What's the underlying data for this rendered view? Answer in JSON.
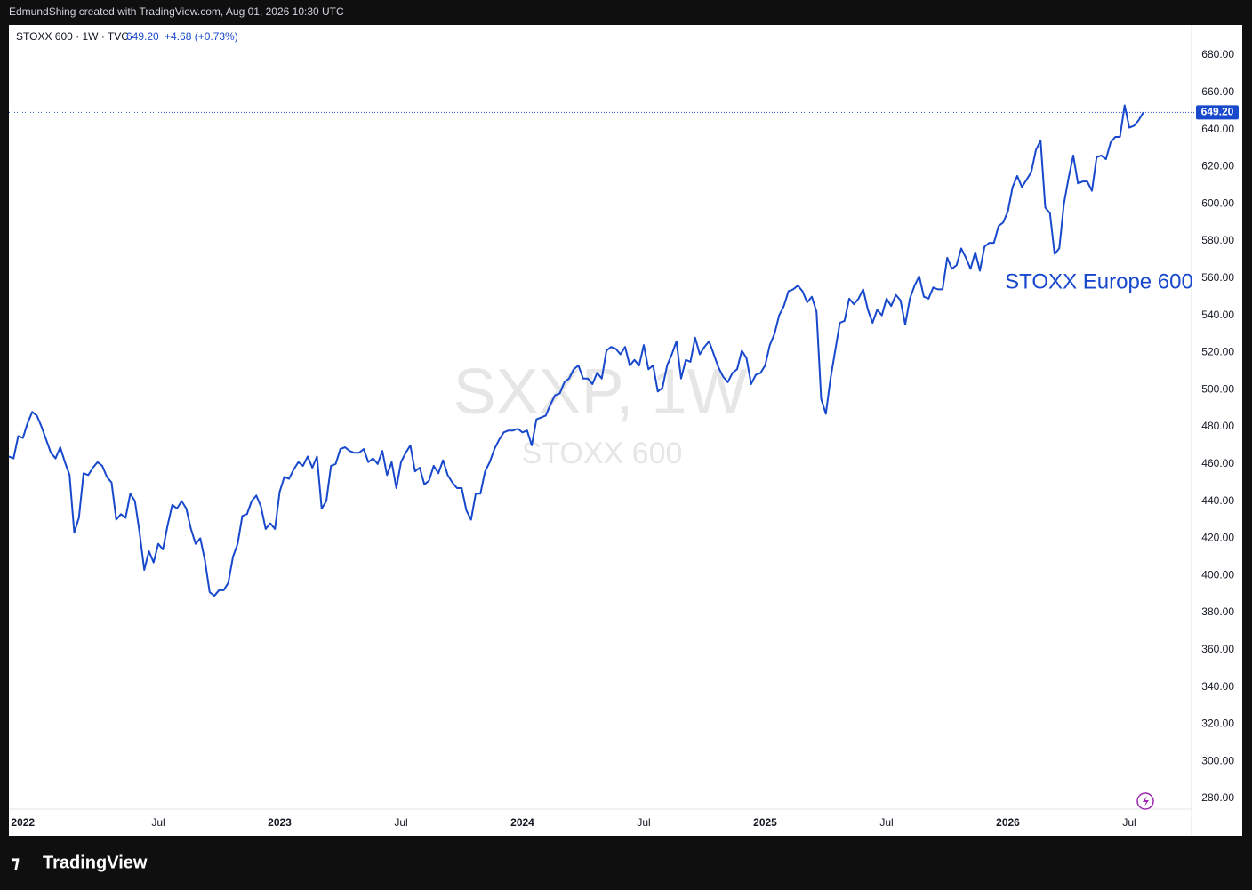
{
  "header": {
    "credit": "EdmundShing created with TradingView.com, Aug 01, 2026 10:30 UTC"
  },
  "chart_data": {
    "type": "line",
    "symbol": "STOXX 600 · 1W · TVC",
    "last": 649.2,
    "last_label": "649.20",
    "change_label": "+4.68 (+0.73%)",
    "watermark": "SXXP, 1W",
    "watermark_sub": "STOXX 600",
    "annotation": "STOXX Europe 600",
    "color": "#1848cc",
    "categories": [
      null,
      null,
      null,
      "2022",
      null,
      null,
      null,
      null,
      null,
      null,
      null,
      null,
      null,
      null,
      null,
      null,
      null,
      null,
      null,
      null,
      null,
      null,
      null,
      null,
      null,
      null,
      null,
      null,
      null,
      null,
      null,
      null,
      "Jul",
      null,
      null,
      null,
      null,
      null,
      null,
      null,
      null,
      null,
      null,
      null,
      null,
      null,
      null,
      null,
      null,
      null,
      null,
      null,
      null,
      null,
      null,
      null,
      null,
      null,
      "2023",
      null,
      null,
      null,
      null,
      null,
      null,
      null,
      null,
      null,
      null,
      null,
      null,
      null,
      null,
      null,
      null,
      null,
      null,
      null,
      null,
      null,
      null,
      null,
      null,
      null,
      "Jul",
      null,
      null,
      null,
      null,
      null,
      null,
      null,
      null,
      null,
      null,
      null,
      null,
      null,
      null,
      null,
      null,
      null,
      null,
      null,
      null,
      null,
      null,
      null,
      null,
      null,
      "2024",
      null,
      null,
      null,
      null,
      null,
      null,
      null,
      null,
      null,
      null,
      null,
      null,
      null,
      null,
      null,
      null,
      null,
      null,
      null,
      null,
      null,
      null,
      null,
      null,
      null,
      "Jul",
      null,
      null,
      null,
      null,
      null,
      null,
      null,
      null,
      null,
      null,
      null,
      null,
      null,
      null,
      null,
      null,
      null,
      null,
      null,
      null,
      null,
      null,
      null,
      null,
      null,
      "2025",
      null,
      null,
      null,
      null,
      null,
      null,
      null,
      null,
      null,
      null,
      null,
      null,
      null,
      null,
      null,
      null,
      null,
      null,
      null,
      null,
      null,
      null,
      null,
      null,
      null,
      "Jul",
      null,
      null,
      null,
      null,
      null,
      null,
      null,
      null,
      null,
      null,
      null,
      null,
      null,
      null,
      null,
      null,
      null,
      null,
      null,
      null,
      null,
      null,
      null,
      null,
      null,
      "2026",
      null,
      null,
      null,
      null,
      null,
      null,
      null,
      null,
      null,
      null,
      null,
      null,
      null,
      null,
      null,
      null,
      null,
      null,
      null,
      null,
      null,
      null,
      null,
      null,
      null,
      "Jul",
      null,
      null,
      null
    ],
    "values": [
      464,
      463,
      475,
      474,
      482,
      488,
      486,
      480,
      473,
      466,
      463,
      469,
      461,
      454,
      423,
      431,
      455,
      454,
      458,
      461,
      459,
      453,
      450,
      430,
      433,
      431,
      444,
      440,
      423,
      403,
      413,
      407,
      417,
      414,
      427,
      438,
      436,
      440,
      436,
      425,
      417,
      420,
      408,
      391,
      389,
      392,
      392,
      396,
      410,
      417,
      432,
      433,
      440,
      443,
      437,
      425,
      428,
      425,
      445,
      453,
      452,
      457,
      461,
      459,
      464,
      458,
      464,
      436,
      440,
      459,
      460,
      468,
      469,
      467,
      466,
      466,
      468,
      461,
      463,
      460,
      467,
      454,
      461,
      447,
      461,
      466,
      470,
      456,
      458,
      449,
      451,
      459,
      455,
      462,
      454,
      450,
      447,
      447,
      435,
      430,
      444,
      444,
      456,
      461,
      468,
      473,
      477,
      478,
      478,
      479,
      477,
      478,
      470,
      484,
      485,
      486,
      492,
      497,
      498,
      504,
      506,
      511,
      513,
      506,
      506,
      503,
      509,
      506,
      521,
      523,
      522,
      519,
      523,
      513,
      516,
      513,
      524,
      511,
      513,
      499,
      501,
      513,
      519,
      526,
      506,
      516,
      515,
      528,
      519,
      523,
      526,
      519,
      512,
      507,
      504,
      509,
      511,
      521,
      517,
      503,
      508,
      509,
      513,
      524,
      530,
      540,
      545,
      553,
      554,
      556,
      553,
      547,
      550,
      542,
      495,
      487,
      506,
      521,
      536,
      537,
      549,
      546,
      549,
      554,
      543,
      536,
      543,
      540,
      549,
      545,
      551,
      548,
      535,
      549,
      556,
      561,
      550,
      549,
      555,
      554,
      554,
      571,
      565,
      567,
      576,
      571,
      565,
      574,
      564,
      577,
      579,
      579,
      588,
      590,
      596,
      609,
      615,
      609,
      613,
      617,
      629,
      634,
      598,
      595,
      573,
      576,
      600,
      614,
      626,
      611,
      612,
      612,
      607,
      625,
      626,
      624,
      633,
      636,
      636,
      653,
      641,
      642,
      645,
      649.2
    ],
    "ylim": [
      259.9,
      696.3
    ],
    "yticks": [
      {
        "value": 280,
        "label": "280.00"
      },
      {
        "value": 300,
        "label": "300.00"
      },
      {
        "value": 320,
        "label": "320.00"
      },
      {
        "value": 340,
        "label": "340.00"
      },
      {
        "value": 360,
        "label": "360.00"
      },
      {
        "value": 380,
        "label": "380.00"
      },
      {
        "value": 400,
        "label": "400.00"
      },
      {
        "value": 420,
        "label": "420.00"
      },
      {
        "value": 440,
        "label": "440.00"
      },
      {
        "value": 460,
        "label": "460.00"
      },
      {
        "value": 480,
        "label": "480.00"
      },
      {
        "value": 500,
        "label": "500.00"
      },
      {
        "value": 520,
        "label": "520.00"
      },
      {
        "value": 540,
        "label": "540.00"
      },
      {
        "value": 560,
        "label": "560.00"
      },
      {
        "value": 580,
        "label": "580.00"
      },
      {
        "value": 600,
        "label": "600.00"
      },
      {
        "value": 620,
        "label": "620.00"
      },
      {
        "value": 640,
        "label": "640.00"
      },
      {
        "value": 660,
        "label": "660.00"
      },
      {
        "value": 680,
        "label": "680.00"
      }
    ],
    "grid": false
  },
  "footer": {
    "brand": "TradingView"
  }
}
